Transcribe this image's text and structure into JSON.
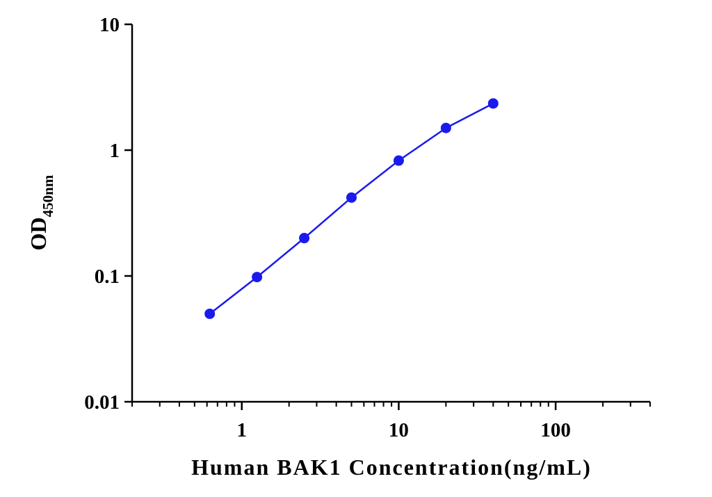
{
  "chart_data": {
    "type": "line",
    "xlabel": "Human BAK1 Concentration(ng/mL)",
    "ylabel": "OD",
    "ylabel_sub": "450nm",
    "x": [
      0.625,
      1.25,
      2.5,
      5,
      10,
      20,
      40
    ],
    "series": [
      {
        "color": "#1a1aee",
        "values": [
          0.05,
          0.098,
          0.2,
          0.42,
          0.826,
          1.5,
          2.35
        ]
      }
    ],
    "xscale": "log",
    "yscale": "log",
    "xlim": [
      0.2,
      400
    ],
    "ylim": [
      0.01,
      10
    ],
    "xticks": [
      1,
      10,
      100
    ],
    "xminorticks": [
      0.2,
      0.3,
      0.4,
      0.5,
      0.6,
      0.7,
      0.8,
      0.9,
      2,
      3,
      4,
      5,
      6,
      7,
      8,
      9,
      20,
      30,
      40,
      50,
      60,
      70,
      80,
      90,
      200,
      300,
      400
    ],
    "yticks": [
      0.01,
      0.1,
      1,
      10
    ],
    "grid": false
  }
}
